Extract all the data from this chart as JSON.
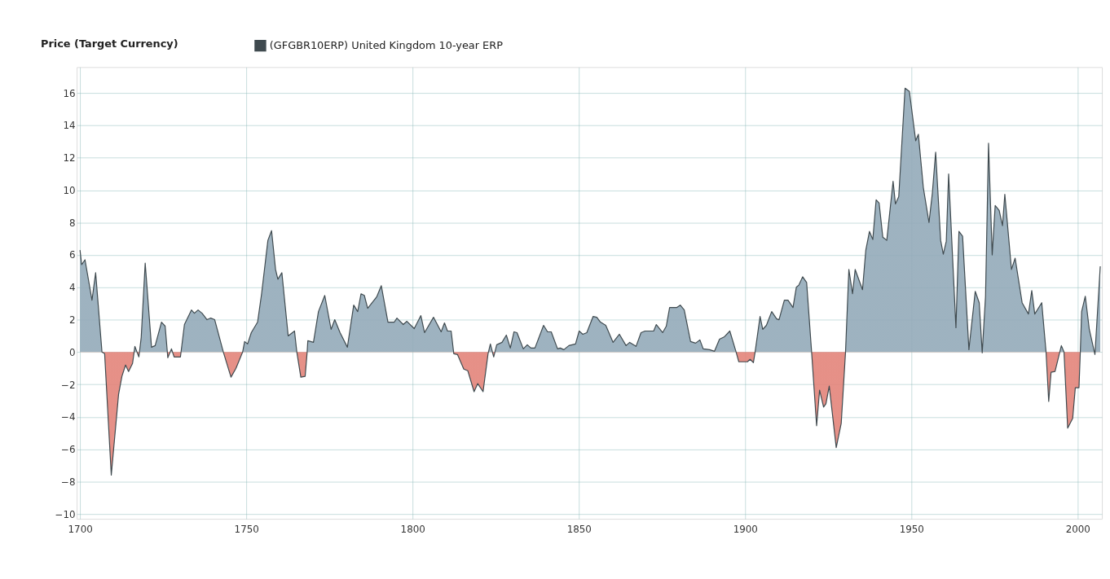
{
  "chart_data": {
    "type": "area",
    "ylabel": "Price (Target Currency)",
    "legend": "top left",
    "grid": true,
    "xlim": [
      1699,
      2007.3
    ],
    "xticks": [
      1700,
      1750,
      1800,
      1850,
      1900,
      1950,
      2000
    ],
    "ylim": [
      -10.3,
      17.6
    ],
    "yticks": [
      -10,
      -8,
      -6,
      -4,
      -2,
      0,
      2,
      4,
      6,
      8,
      10,
      12,
      14,
      16
    ],
    "x": [
      1700,
      1700.5,
      1701.5,
      1703.6,
      1704.7,
      1706.6,
      1707.4,
      1709.4,
      1711.6,
      1712.6,
      1713.7,
      1714.6,
      1715.8,
      1716.5,
      1717.7,
      1718.4,
      1719.6,
      1721.5,
      1722.6,
      1724.5,
      1725.6,
      1726.4,
      1727.5,
      1728.3,
      1730.2,
      1731.4,
      1733.5,
      1734.4,
      1735.5,
      1736.7,
      1738.2,
      1739.3,
      1740.5,
      1743.1,
      1745.4,
      1746.9,
      1748.9,
      1749.5,
      1750.4,
      1751.5,
      1753.4,
      1754.6,
      1756.5,
      1757.6,
      1758.8,
      1759.5,
      1760.7,
      1762.6,
      1764.5,
      1765.2,
      1766.4,
      1767.7,
      1768.3,
      1768.5,
      1770.2,
      1771.7,
      1773.6,
      1775.5,
      1776.6,
      1778.2,
      1780.4,
      1782.3,
      1783.5,
      1784.5,
      1785.5,
      1786.5,
      1789.2,
      1790.6,
      1792.6,
      1794.5,
      1795.3,
      1797.2,
      1798.3,
      1800.5,
      1802.5,
      1803.6,
      1806.3,
      1808.6,
      1809.6,
      1810.5,
      1811.6,
      1812.4,
      1813.5,
      1815.4,
      1816.6,
      1818.5,
      1819.6,
      1821.2,
      1822.7,
      1823.4,
      1824.4,
      1825.3,
      1826.9,
      1828.2,
      1829.4,
      1830.5,
      1831.4,
      1833.3,
      1834.5,
      1835.6,
      1836.8,
      1839.4,
      1840.6,
      1841.7,
      1843.6,
      1844.4,
      1845.5,
      1847.0,
      1849.0,
      1850.1,
      1851.2,
      1852.4,
      1854.3,
      1855.4,
      1856.5,
      1858.1,
      1860.3,
      1862.2,
      1864.2,
      1865.3,
      1867.2,
      1868.7,
      1869.9,
      1872.5,
      1873.3,
      1875.2,
      1876.3,
      1877.3,
      1879.4,
      1880.5,
      1881.7,
      1883.6,
      1885.1,
      1886.4,
      1887.4,
      1889.3,
      1890.8,
      1892.3,
      1893.8,
      1895.4,
      1897.3,
      1898.1,
      1900.7,
      1901.5,
      1902.5,
      1903,
      1904.5,
      1905.3,
      1906.4,
      1908,
      1909.5,
      1910.2,
      1911.8,
      1912.9,
      1914.4,
      1915.4,
      1916.2,
      1917.3,
      1918.5,
      1920,
      1921.5,
      1922.4,
      1923.6,
      1924.3,
      1925.3,
      1927.4,
      1928.9,
      1930.2,
      1931.2,
      1932.3,
      1933.1,
      1935.3,
      1936.3,
      1937.4,
      1938.4,
      1939.4,
      1940.3,
      1941.4,
      1942.6,
      1944.5,
      1945.2,
      1946.2,
      1948.1,
      1949.4,
      1951.3,
      1952.1,
      1953.6,
      1955.3,
      1956.3,
      1957.3,
      1958.8,
      1959.6,
      1960.5,
      1961.2,
      1963.4,
      1964.3,
      1965.4,
      1967.3,
      1969.2,
      1970.4,
      1971.3,
      1972.3,
      1973.2,
      1974.3,
      1975.2,
      1976.4,
      1977.4,
      1978.1,
      1980.1,
      1981.2,
      1983.3,
      1985.2,
      1986.2,
      1987.1,
      1989.2,
      1990.5,
      1991.3,
      1992,
      1993.2,
      1995.1,
      1995.9,
      1997,
      1998.5,
      1999.3,
      2000.4,
      2000.8,
      2001.2,
      2002.3,
      2003.5,
      2005.2,
      2006.8
    ],
    "series": [
      {
        "name": "(GFGBR10ERP) United Kingdom 10-year ERP",
        "color": "#3f4a4f",
        "values": [
          6.3,
          5.4,
          5.7,
          3.2,
          4.9,
          0,
          -0.1,
          -7.6,
          -2.6,
          -1.5,
          -0.8,
          -1.2,
          -0.7,
          0.35,
          -0.3,
          0.9,
          5.5,
          0.3,
          0.4,
          1.85,
          1.6,
          -0.35,
          0.2,
          -0.3,
          -0.3,
          1.7,
          2.6,
          2.4,
          2.6,
          2.4,
          2.0,
          2.1,
          2.0,
          0,
          -1.55,
          -1.0,
          0,
          0.65,
          0.5,
          1.2,
          1.85,
          3.6,
          6.9,
          7.5,
          5.1,
          4.5,
          4.9,
          1.0,
          1.3,
          0,
          -1.55,
          -1.5,
          0,
          0.7,
          0.6,
          2.5,
          3.5,
          1.4,
          2.0,
          1.2,
          0.3,
          2.9,
          2.5,
          3.6,
          3.5,
          2.7,
          3.4,
          4.1,
          1.85,
          1.85,
          2.1,
          1.7,
          1.9,
          1.45,
          2.25,
          1.2,
          2.15,
          1.25,
          1.8,
          1.3,
          1.3,
          -0.1,
          -0.15,
          -1.05,
          -1.15,
          -2.45,
          -1.95,
          -2.45,
          -0.1,
          0.5,
          -0.3,
          0.45,
          0.6,
          1.05,
          0.25,
          1.25,
          1.2,
          0.2,
          0.45,
          0.25,
          0.25,
          1.65,
          1.25,
          1.25,
          0.2,
          0.25,
          0.15,
          0.4,
          0.5,
          1.3,
          1.1,
          1.2,
          2.2,
          2.15,
          1.85,
          1.65,
          0.6,
          1.1,
          0.4,
          0.6,
          0.35,
          1.2,
          1.3,
          1.3,
          1.7,
          1.2,
          1.6,
          2.75,
          2.75,
          2.9,
          2.6,
          0.65,
          0.55,
          0.75,
          0.2,
          0.15,
          0.05,
          0.8,
          0.95,
          1.3,
          0,
          -0.6,
          -0.6,
          -0.45,
          -0.65,
          0,
          2.2,
          1.4,
          1.65,
          2.5,
          2.05,
          2.0,
          3.2,
          3.2,
          2.75,
          4.0,
          4.15,
          4.65,
          4.3,
          0,
          -4.55,
          -2.35,
          -3.4,
          -3.2,
          -2.1,
          -5.9,
          -4.4,
          0,
          5.1,
          3.6,
          5.1,
          3.85,
          6.3,
          7.45,
          6.95,
          9.4,
          9.2,
          7.1,
          6.9,
          10.55,
          9.15,
          9.6,
          16.3,
          16.1,
          13.05,
          13.45,
          10.15,
          8.0,
          9.8,
          12.35,
          6.9,
          6.05,
          6.85,
          11.0,
          1.5,
          7.45,
          7.15,
          0.15,
          3.75,
          3.05,
          -0.05,
          3.45,
          12.9,
          6.0,
          9.05,
          8.75,
          7.8,
          9.75,
          5.1,
          5.8,
          3.05,
          2.35,
          3.8,
          2.35,
          3.05,
          0,
          -3.05,
          -1.25,
          -1.2,
          0.4,
          0,
          -4.7,
          -4.1,
          -2.2,
          -2.2,
          0,
          2.5,
          3.45,
          1.4,
          -0.15,
          5.3
        ]
      }
    ]
  }
}
